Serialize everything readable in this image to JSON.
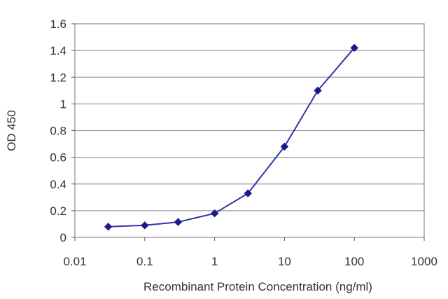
{
  "chart_data": {
    "type": "line",
    "title": "",
    "xlabel": "Recombinant Protein Concentration (ng/ml)",
    "ylabel": "OD 450",
    "x_scale": "log",
    "xlim": [
      0.01,
      1000
    ],
    "ylim": [
      0,
      1.6
    ],
    "x_ticks": [
      "0.01",
      "0.1",
      "1",
      "10",
      "100",
      "1000"
    ],
    "y_ticks": [
      "0",
      "0.2",
      "0.4",
      "0.6",
      "0.8",
      "1",
      "1.2",
      "1.4",
      "1.6"
    ],
    "grid": "horizontal",
    "legend": "none",
    "series": [
      {
        "x": [
          0.03,
          0.1,
          0.3,
          1,
          3,
          10,
          30,
          100
        ],
        "y": [
          0.08,
          0.09,
          0.115,
          0.18,
          0.33,
          0.68,
          1.1,
          1.42
        ],
        "color": "#3333aa",
        "marker_color": "#1a1a8c"
      }
    ],
    "plot_background": "#ffffff",
    "grid_color": "#9a9a9a"
  }
}
